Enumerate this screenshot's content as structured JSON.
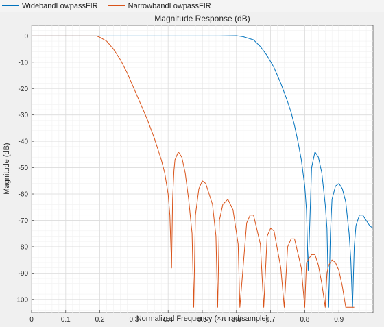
{
  "chart_data": {
    "type": "line",
    "title": "Magnitude Response (dB)",
    "xlabel": "Normalized Frequency (×π rad/sample)",
    "ylabel": "Magnitude (dB)",
    "xlim": [
      0,
      1
    ],
    "ylim": [
      -105,
      4
    ],
    "xticks": [
      0,
      0.1,
      0.2,
      0.3,
      0.4,
      0.5,
      0.6,
      0.7,
      0.8,
      0.9
    ],
    "yticks": [
      0,
      -10,
      -20,
      -30,
      -40,
      -50,
      -60,
      -70,
      -80,
      -90,
      -100
    ],
    "grid": true,
    "legend_position": "top-left",
    "series": [
      {
        "name": "WidebandLowpassFIR",
        "color": "#0072bd",
        "x": [
          0,
          0.1,
          0.2,
          0.3,
          0.4,
          0.5,
          0.55,
          0.6,
          0.62,
          0.65,
          0.67,
          0.69,
          0.71,
          0.73,
          0.75,
          0.76,
          0.77,
          0.78,
          0.79,
          0.8,
          0.805,
          0.81,
          0.815,
          0.82,
          0.83,
          0.84,
          0.85,
          0.86,
          0.865,
          0.87,
          0.875,
          0.88,
          0.89,
          0.9,
          0.91,
          0.92,
          0.93,
          0.935,
          0.94,
          0.945,
          0.95,
          0.96,
          0.97,
          0.98,
          0.99,
          1.0
        ],
        "y": [
          0,
          0,
          0,
          0,
          0,
          0,
          0,
          0.1,
          -0.3,
          -1.5,
          -4,
          -7.5,
          -12,
          -18,
          -25,
          -29,
          -34,
          -40,
          -47,
          -57,
          -66,
          -89,
          -70,
          -50,
          -44,
          -46,
          -52,
          -64,
          -73,
          -103,
          -75,
          -62,
          -57,
          -56,
          -58,
          -63,
          -75,
          -85,
          -103,
          -80,
          -72,
          -68,
          -68,
          -70,
          -72,
          -73
        ]
      },
      {
        "name": "NarrowbandLowpassFIR",
        "color": "#d95319",
        "x": [
          0,
          0.1,
          0.15,
          0.19,
          0.2,
          0.22,
          0.24,
          0.26,
          0.28,
          0.3,
          0.32,
          0.34,
          0.36,
          0.38,
          0.39,
          0.4,
          0.405,
          0.41,
          0.413,
          0.417,
          0.42,
          0.43,
          0.44,
          0.45,
          0.46,
          0.47,
          0.475,
          0.48,
          0.49,
          0.5,
          0.51,
          0.53,
          0.54,
          0.545,
          0.55,
          0.56,
          0.575,
          0.59,
          0.605,
          0.61,
          0.63,
          0.64,
          0.65,
          0.67,
          0.68,
          0.69,
          0.7,
          0.71,
          0.73,
          0.74,
          0.75,
          0.76,
          0.77,
          0.79,
          0.8,
          0.805,
          0.81,
          0.82,
          0.83,
          0.84,
          0.85,
          0.86,
          0.865,
          0.87,
          0.875,
          0.88,
          0.89,
          0.9,
          0.91,
          0.92,
          0.93,
          0.94,
          0.945
        ],
        "y": [
          0,
          0,
          0,
          0,
          -0.5,
          -2,
          -5,
          -9,
          -14,
          -20,
          -26,
          -32,
          -39,
          -47,
          -52,
          -60,
          -68,
          -88,
          -62,
          -51,
          -47,
          -44,
          -46,
          -52,
          -62,
          -75,
          -103,
          -68,
          -58,
          -55,
          -56,
          -64,
          -76,
          -103,
          -70,
          -64,
          -62,
          -66,
          -79,
          -103,
          -71,
          -68,
          -68,
          -79,
          -103,
          -76,
          -73,
          -74,
          -88,
          -103,
          -80,
          -77,
          -77,
          -88,
          -103,
          -86,
          -85,
          -83,
          -83,
          -87,
          -94,
          -103,
          -90,
          -87,
          -86,
          -85,
          -86,
          -89,
          -95,
          -103,
          -103,
          -103,
          -103
        ]
      }
    ]
  }
}
